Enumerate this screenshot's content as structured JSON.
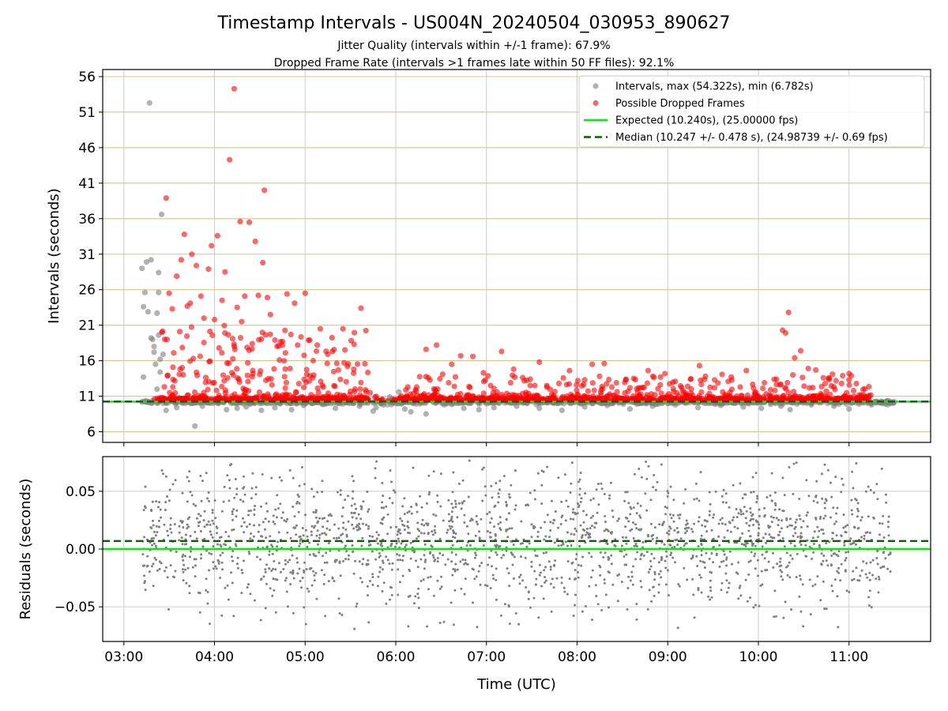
{
  "chart_data": [
    {
      "type": "scatter",
      "title": "Timestamp Intervals - US004N_20240504_030953_890627",
      "subtitle_lines": [
        "Jitter Quality (intervals within +/-1 frame): 67.9%",
        "Dropped Frame Rate (intervals >1 frames late within 50 FF files): 92.1%"
      ],
      "xlabel": "",
      "ylabel": "Intervals (seconds)",
      "xlim": [
        "02:46",
        "11:54"
      ],
      "ylim": [
        4.5,
        57.0
      ],
      "x_ticks": [
        "03:00",
        "04:00",
        "05:00",
        "06:00",
        "07:00",
        "08:00",
        "09:00",
        "10:00",
        "11:00"
      ],
      "y_ticks": [
        6,
        11,
        16,
        21,
        26,
        31,
        36,
        41,
        46,
        51,
        56
      ],
      "grid": true,
      "legend_position": "top-right",
      "legend": [
        {
          "label": "Intervals, max (54.322s), min (6.782s)",
          "marker": "circle",
          "color": "#7f7f7f"
        },
        {
          "label": "Possible Dropped Frames",
          "marker": "circle",
          "color": "#ff0000"
        },
        {
          "label": "Expected (10.240s), (25.00000 fps)",
          "marker": "solid-line",
          "color": "#00ee00"
        },
        {
          "label": "Median (10.247 +/- 0.478 s), (24.98739 +/- 0.69 fps)",
          "marker": "dashed-line",
          "color": "#006400"
        }
      ],
      "reference_lines": [
        {
          "name": "Expected",
          "y": 10.24,
          "style": "solid",
          "color": "#00ee00"
        },
        {
          "name": "Median",
          "y": 10.247,
          "style": "dashed",
          "color": "#006400"
        }
      ],
      "series": [
        {
          "name": "Intervals",
          "color": "#7f7f7f",
          "points": [
            [
              "03:12",
              29.0
            ],
            [
              "03:13",
              23.6
            ],
            [
              "03:14",
              25.6
            ],
            [
              "03:15",
              29.9
            ],
            [
              "03:16",
              22.9
            ],
            [
              "03:17",
              52.3
            ],
            [
              "03:18",
              30.2
            ],
            [
              "03:18",
              19.2
            ],
            [
              "03:19",
              19.0
            ],
            [
              "03:20",
              18.0
            ],
            [
              "03:20",
              17.2
            ],
            [
              "03:21",
              15.5
            ],
            [
              "03:22",
              22.7
            ],
            [
              "03:23",
              28.4
            ],
            [
              "03:23",
              25.6
            ],
            [
              "03:23",
              19.6
            ],
            [
              "03:24",
              14.4
            ],
            [
              "03:25",
              36.6
            ],
            [
              "03:26",
              16.9
            ],
            [
              "03:13",
              13.7
            ],
            [
              "03:22",
              12.0
            ],
            [
              "03:24",
              16.2
            ],
            [
              "03:47",
              6.8
            ],
            [
              "03:28",
              9.0
            ],
            [
              "03:35",
              9.4
            ],
            [
              "03:52",
              9.6
            ],
            [
              "04:08",
              9.1
            ],
            [
              "04:15",
              9.3
            ],
            [
              "04:21",
              9.5
            ],
            [
              "04:31",
              9.0
            ],
            [
              "04:40",
              9.4
            ],
            [
              "04:51",
              9.1
            ],
            [
              "04:59",
              9.7
            ],
            [
              "05:20",
              9.3
            ],
            [
              "05:36",
              9.6
            ],
            [
              "05:45",
              8.9
            ],
            [
              "05:47",
              9.4
            ],
            [
              "05:52",
              9.8
            ],
            [
              "05:56",
              10.9
            ],
            [
              "06:02",
              11.6
            ],
            [
              "06:06",
              9.2
            ],
            [
              "06:10",
              8.8
            ],
            [
              "06:20",
              8.5
            ],
            [
              "06:32",
              9.8
            ],
            [
              "06:45",
              9.3
            ],
            [
              "06:55",
              9.1
            ],
            [
              "07:05",
              9.4
            ],
            [
              "07:20",
              9.6
            ],
            [
              "07:35",
              9.3
            ],
            [
              "07:50",
              9.0
            ],
            [
              "08:05",
              9.5
            ],
            [
              "08:20",
              9.7
            ],
            [
              "08:35",
              9.2
            ],
            [
              "08:50",
              9.6
            ],
            [
              "09:05",
              9.8
            ],
            [
              "09:20",
              9.4
            ],
            [
              "09:35",
              9.7
            ],
            [
              "09:50",
              9.5
            ],
            [
              "10:02",
              9.3
            ],
            [
              "10:15",
              9.6
            ],
            [
              "10:21",
              9.1
            ],
            [
              "10:35",
              9.8
            ],
            [
              "10:50",
              9.6
            ],
            [
              "11:00",
              9.2
            ],
            [
              "11:15",
              9.8
            ],
            [
              "11:25",
              10.1
            ]
          ]
        },
        {
          "name": "Possible Dropped Frames",
          "color": "#ff0000",
          "points": [
            [
              "04:10",
              44.3
            ],
            [
              "04:13",
              54.3
            ],
            [
              "04:33",
              40.0
            ],
            [
              "03:28",
              38.9
            ],
            [
              "04:07",
              28.5
            ],
            [
              "04:02",
              33.6
            ],
            [
              "04:17",
              35.6
            ],
            [
              "04:23",
              35.5
            ],
            [
              "03:40",
              33.8
            ],
            [
              "03:45",
              31.0
            ],
            [
              "03:58",
              32.2
            ],
            [
              "04:05",
              24.5
            ],
            [
              "04:27",
              32.8
            ],
            [
              "04:32",
              29.8
            ],
            [
              "04:29",
              25.2
            ],
            [
              "03:35",
              27.9
            ],
            [
              "03:38",
              30.2
            ],
            [
              "03:48",
              29.4
            ],
            [
              "03:51",
              25.1
            ],
            [
              "03:56",
              28.9
            ],
            [
              "04:15",
              23.5
            ],
            [
              "04:20",
              25.1
            ],
            [
              "04:35",
              24.9
            ],
            [
              "04:37",
              22.5
            ],
            [
              "04:48",
              25.4
            ],
            [
              "04:53",
              24.1
            ],
            [
              "05:00",
              25.5
            ],
            [
              "05:10",
              20.5
            ],
            [
              "05:25",
              20.5
            ],
            [
              "05:37",
              23.4
            ],
            [
              "04:45",
              18.7
            ],
            [
              "04:40",
              18.9
            ],
            [
              "03:30",
              25.5
            ],
            [
              "03:32",
              23.3
            ],
            [
              "03:42",
              23.7
            ],
            [
              "03:44",
              24.1
            ],
            [
              "03:53",
              22.0
            ],
            [
              "04:00",
              21.8
            ],
            [
              "04:12",
              19.1
            ],
            [
              "04:18",
              21.5
            ],
            [
              "04:25",
              18.4
            ],
            [
              "04:43",
              16.1
            ],
            [
              "04:47",
              17.1
            ],
            [
              "04:55",
              18.2
            ],
            [
              "05:03",
              18.9
            ],
            [
              "05:08",
              18.2
            ],
            [
              "05:15",
              16.9
            ],
            [
              "05:18",
              17.3
            ],
            [
              "05:22",
              14.7
            ],
            [
              "05:28",
              15.2
            ],
            [
              "05:33",
              12.0
            ],
            [
              "05:40",
              11.9
            ],
            [
              "03:27",
              19.0
            ],
            [
              "03:33",
              17.1
            ],
            [
              "03:37",
              20.1
            ],
            [
              "03:46",
              16.3
            ],
            [
              "04:03",
              17.8
            ],
            [
              "04:22",
              15.7
            ],
            [
              "04:38",
              12.6
            ],
            [
              "04:50",
              14.9
            ],
            [
              "05:05",
              13.6
            ],
            [
              "05:12",
              12.3
            ],
            [
              "05:30",
              11.7
            ],
            [
              "05:43",
              11.5
            ],
            [
              "06:20",
              17.6
            ],
            [
              "06:27",
              18.2
            ],
            [
              "06:43",
              16.7
            ],
            [
              "06:51",
              16.6
            ],
            [
              "06:37",
              15.5
            ],
            [
              "06:58",
              14.3
            ],
            [
              "06:31",
              14.1
            ],
            [
              "06:35",
              12.9
            ],
            [
              "06:08",
              12.3
            ],
            [
              "06:13",
              11.9
            ],
            [
              "07:10",
              17.3
            ],
            [
              "07:18",
              14.8
            ],
            [
              "07:29",
              13.4
            ],
            [
              "07:35",
              15.8
            ],
            [
              "07:40",
              12.5
            ],
            [
              "07:55",
              14.6
            ],
            [
              "08:05",
              13.3
            ],
            [
              "08:10",
              15.5
            ],
            [
              "08:18",
              15.6
            ],
            [
              "08:26",
              12.9
            ],
            [
              "08:35",
              12.2
            ],
            [
              "08:47",
              14.6
            ],
            [
              "08:55",
              12.6
            ],
            [
              "09:05",
              13.1
            ],
            [
              "09:15",
              13.4
            ],
            [
              "09:21",
              15.3
            ],
            [
              "09:31",
              12.2
            ],
            [
              "09:42",
              13.7
            ],
            [
              "09:52",
              14.6
            ],
            [
              "10:04",
              12.9
            ],
            [
              "10:12",
              13.4
            ],
            [
              "10:16",
              20.3
            ],
            [
              "10:18",
              19.9
            ],
            [
              "10:20",
              22.8
            ],
            [
              "10:24",
              16.4
            ],
            [
              "10:28",
              17.4
            ],
            [
              "10:33",
              14.9
            ],
            [
              "10:38",
              14.7
            ],
            [
              "10:43",
              13.6
            ],
            [
              "10:49",
              14.1
            ],
            [
              "10:55",
              12.8
            ],
            [
              "11:00",
              13.3
            ],
            [
              "11:03",
              11.8
            ],
            [
              "11:08",
              11.2
            ],
            [
              "11:13",
              10.9
            ],
            [
              "07:05",
              12.1
            ],
            [
              "07:48",
              12.8
            ],
            [
              "08:40",
              11.6
            ],
            [
              "09:10",
              11.8
            ],
            [
              "09:48",
              12.3
            ],
            [
              "10:08",
              11.9
            ],
            [
              "10:45",
              11.7
            ]
          ]
        }
      ]
    },
    {
      "type": "scatter",
      "title": "",
      "xlabel": "Time (UTC)",
      "ylabel": "Residuals (seconds)",
      "xlim": [
        "02:46",
        "11:54"
      ],
      "ylim": [
        -0.08,
        0.08
      ],
      "x_ticks": [
        "03:00",
        "04:00",
        "05:00",
        "06:00",
        "07:00",
        "08:00",
        "09:00",
        "10:00",
        "11:00"
      ],
      "y_ticks": [
        "−0.05",
        "0.00",
        "0.05"
      ],
      "y_tick_values": [
        -0.05,
        0.0,
        0.05
      ],
      "grid": true,
      "reference_lines": [
        {
          "name": "Expected",
          "y": 0.0,
          "style": "solid",
          "color": "#00ee00"
        },
        {
          "name": "Median",
          "y": 0.007,
          "style": "dashed",
          "color": "#006400"
        }
      ],
      "series": [
        {
          "name": "Residuals",
          "color": "#7f7f7f",
          "distribution": "roughly 2000 points between 03:12 and 11:28, centered near 0.007 s with spread about 0.03 s, clipped to the range -0.08 to 0.08 s"
        }
      ]
    }
  ]
}
